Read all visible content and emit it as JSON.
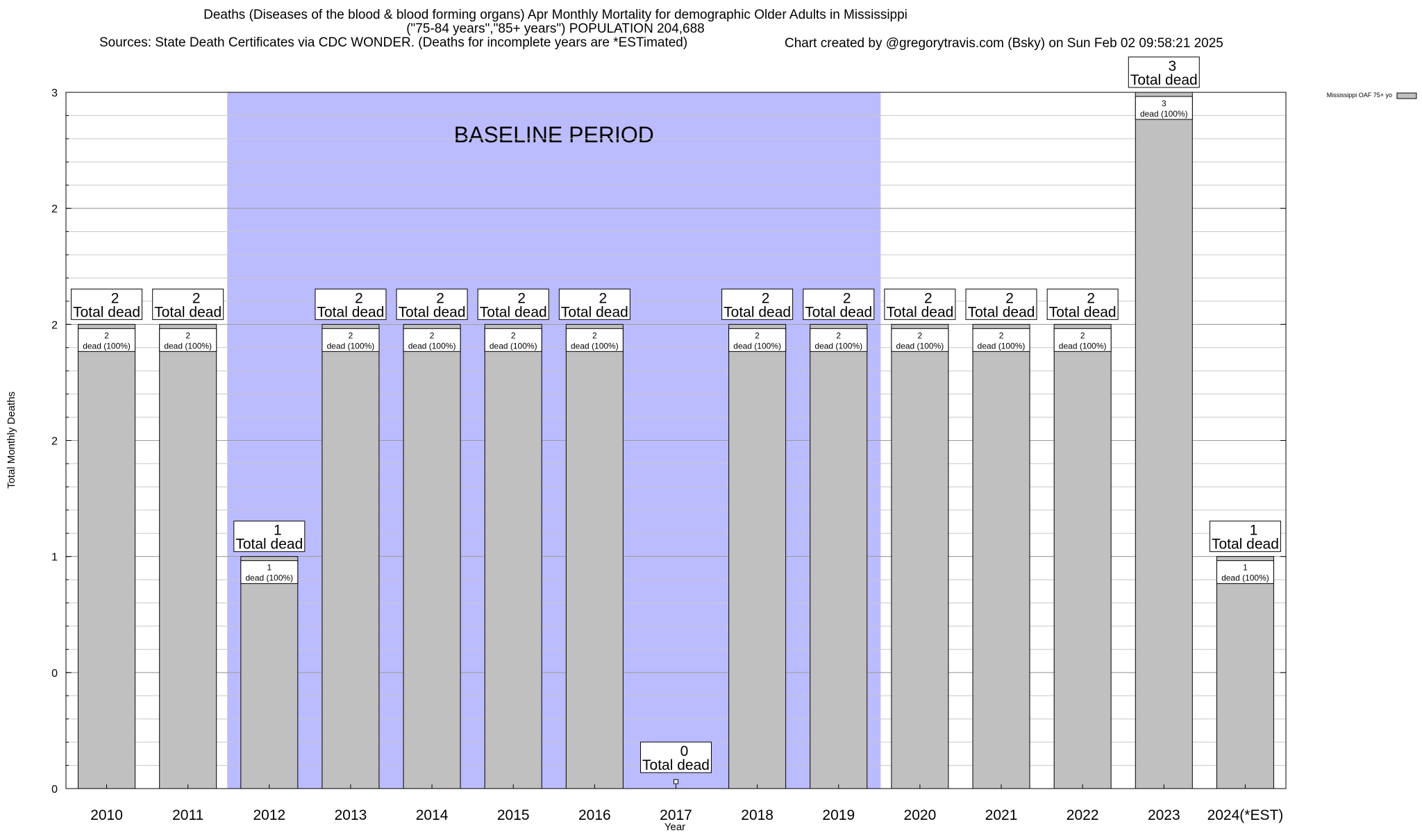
{
  "chart_data": {
    "type": "bar",
    "title": "Deaths (Diseases of the blood & blood forming organs) Apr Monthly Mortality for demographic Older Adults in Mississippi",
    "subtitle": "(\"75-84 years\",\"85+ years\") POPULATION 204,688",
    "sources": "Sources: State Death Certificates via CDC WONDER. (Deaths for incomplete years are *ESTimated)",
    "credit": "Chart created by @gregorytravis.com (Bsky) on Sun Feb 02 09:58:21 2025",
    "xlabel": "Year",
    "ylabel": "Total Monthly Deaths",
    "ylim": [
      0,
      3
    ],
    "yticks": [
      {
        "value": 0,
        "label": "0"
      },
      {
        "value": 0.5,
        "label": "0"
      },
      {
        "value": 1,
        "label": "1"
      },
      {
        "value": 1.5,
        "label": "2"
      },
      {
        "value": 2,
        "label": "2"
      },
      {
        "value": 2.5,
        "label": "2"
      },
      {
        "value": 3,
        "label": "3"
      }
    ],
    "minor_grid_step": 0.1,
    "grid": true,
    "categories": [
      "2010",
      "2011",
      "2012",
      "2013",
      "2014",
      "2015",
      "2016",
      "2017",
      "2018",
      "2019",
      "2020",
      "2021",
      "2022",
      "2023",
      "2024(*EST)"
    ],
    "series": [
      {
        "name": "Mississippi OAF 75+ yo",
        "color": "#c0c0c0",
        "values": [
          2,
          2,
          1,
          2,
          2,
          2,
          2,
          0,
          2,
          2,
          2,
          2,
          2,
          3,
          1
        ]
      }
    ],
    "total_label_suffix": "Total dead",
    "inner_label_suffix": "dead (100%)",
    "baseline": {
      "label": "BASELINE PERIOD",
      "from": "2012",
      "to": "2019",
      "color": "#bbbbff"
    },
    "legend_placement": "top-right"
  }
}
